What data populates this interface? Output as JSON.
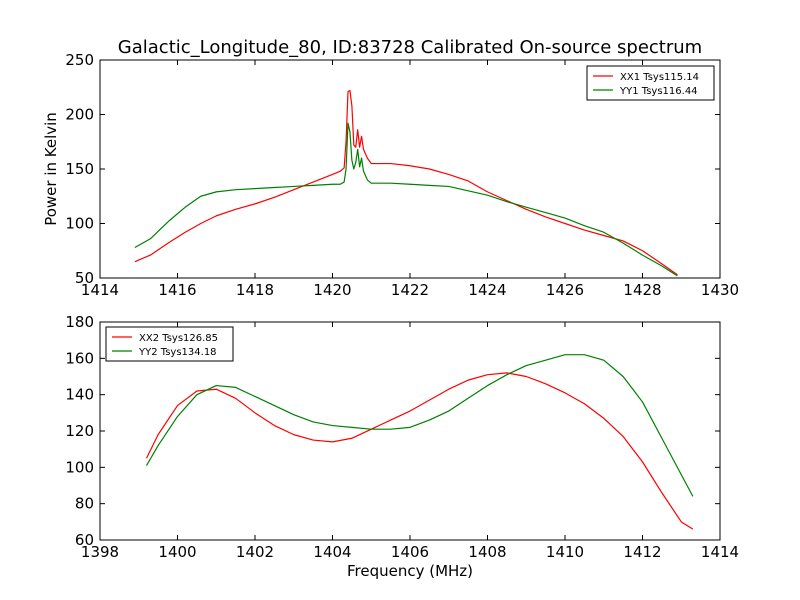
{
  "figure": {
    "title": "Galactic_Longitude_80, ID:83728 Calibrated On-source spectrum",
    "background": "#ffffff"
  },
  "chart_data": [
    {
      "type": "line",
      "title": "Galactic_Longitude_80, ID:83728 Calibrated On-source spectrum",
      "xlabel": "",
      "ylabel": "Power in Kelvin",
      "xlim": [
        1414,
        1430
      ],
      "ylim": [
        50,
        250
      ],
      "xticks": [
        1414,
        1416,
        1418,
        1420,
        1422,
        1424,
        1426,
        1428,
        1430
      ],
      "yticks": [
        50,
        100,
        150,
        200,
        250
      ],
      "grid": false,
      "legend_position": "top-right",
      "series": [
        {
          "name": "XX1 Tsys115.14",
          "color": "#ff0000",
          "points": [
            [
              1414.9,
              65
            ],
            [
              1415.3,
              71
            ],
            [
              1415.8,
              83
            ],
            [
              1416.2,
              92
            ],
            [
              1416.6,
              100
            ],
            [
              1417.0,
              107
            ],
            [
              1417.5,
              113
            ],
            [
              1418.0,
              118
            ],
            [
              1418.5,
              124
            ],
            [
              1419.0,
              131
            ],
            [
              1419.5,
              138
            ],
            [
              1420.0,
              145
            ],
            [
              1420.2,
              148
            ],
            [
              1420.3,
              151
            ],
            [
              1420.35,
              175
            ],
            [
              1420.4,
              221
            ],
            [
              1420.45,
              222
            ],
            [
              1420.5,
              208
            ],
            [
              1420.55,
              172
            ],
            [
              1420.6,
              170
            ],
            [
              1420.65,
              186
            ],
            [
              1420.7,
              170
            ],
            [
              1420.75,
              180
            ],
            [
              1420.8,
              168
            ],
            [
              1420.9,
              160
            ],
            [
              1421.0,
              155
            ],
            [
              1421.5,
              155
            ],
            [
              1422.0,
              153
            ],
            [
              1422.5,
              150
            ],
            [
              1423.0,
              145
            ],
            [
              1423.5,
              139
            ],
            [
              1424.0,
              129
            ],
            [
              1424.5,
              121
            ],
            [
              1425.0,
              113
            ],
            [
              1425.5,
              106
            ],
            [
              1426.0,
              100
            ],
            [
              1426.5,
              94
            ],
            [
              1427.0,
              89
            ],
            [
              1427.5,
              84
            ],
            [
              1428.0,
              75
            ],
            [
              1428.5,
              63
            ],
            [
              1428.9,
              53
            ]
          ]
        },
        {
          "name": "YY1 Tsys116.44",
          "color": "#008000",
          "points": [
            [
              1414.9,
              78
            ],
            [
              1415.3,
              86
            ],
            [
              1415.8,
              103
            ],
            [
              1416.2,
              115
            ],
            [
              1416.6,
              125
            ],
            [
              1417.0,
              129
            ],
            [
              1417.5,
              131
            ],
            [
              1418.0,
              132
            ],
            [
              1418.5,
              133
            ],
            [
              1419.0,
              134
            ],
            [
              1419.5,
              135
            ],
            [
              1420.0,
              136
            ],
            [
              1420.2,
              136
            ],
            [
              1420.3,
              138
            ],
            [
              1420.35,
              150
            ],
            [
              1420.4,
              192
            ],
            [
              1420.45,
              184
            ],
            [
              1420.5,
              158
            ],
            [
              1420.55,
              150
            ],
            [
              1420.6,
              156
            ],
            [
              1420.65,
              168
            ],
            [
              1420.7,
              152
            ],
            [
              1420.75,
              160
            ],
            [
              1420.8,
              148
            ],
            [
              1420.9,
              140
            ],
            [
              1421.0,
              137
            ],
            [
              1421.5,
              137
            ],
            [
              1422.0,
              136
            ],
            [
              1422.5,
              135
            ],
            [
              1423.0,
              134
            ],
            [
              1423.5,
              130
            ],
            [
              1424.0,
              126
            ],
            [
              1424.5,
              120
            ],
            [
              1425.0,
              115
            ],
            [
              1425.5,
              110
            ],
            [
              1426.0,
              105
            ],
            [
              1426.5,
              98
            ],
            [
              1427.0,
              92
            ],
            [
              1427.5,
              82
            ],
            [
              1428.0,
              71
            ],
            [
              1428.5,
              61
            ],
            [
              1428.9,
              52
            ]
          ]
        }
      ]
    },
    {
      "type": "line",
      "title": "",
      "xlabel": "Frequency (MHz)",
      "ylabel": "",
      "xlim": [
        1398,
        1414
      ],
      "ylim": [
        60,
        180
      ],
      "xticks": [
        1398,
        1400,
        1402,
        1404,
        1406,
        1408,
        1410,
        1412,
        1414
      ],
      "yticks": [
        60,
        80,
        100,
        120,
        140,
        160,
        180
      ],
      "grid": false,
      "legend_position": "top-left",
      "series": [
        {
          "name": "XX2 Tsys126.85",
          "color": "#ff0000",
          "points": [
            [
              1399.2,
              105
            ],
            [
              1399.5,
              118
            ],
            [
              1400.0,
              134
            ],
            [
              1400.5,
              142
            ],
            [
              1401.0,
              143
            ],
            [
              1401.5,
              138
            ],
            [
              1402.0,
              130
            ],
            [
              1402.5,
              123
            ],
            [
              1403.0,
              118
            ],
            [
              1403.5,
              115
            ],
            [
              1404.0,
              114
            ],
            [
              1404.5,
              116
            ],
            [
              1405.0,
              121
            ],
            [
              1405.5,
              126
            ],
            [
              1406.0,
              131
            ],
            [
              1406.5,
              137
            ],
            [
              1407.0,
              143
            ],
            [
              1407.5,
              148
            ],
            [
              1408.0,
              151
            ],
            [
              1408.5,
              152
            ],
            [
              1409.0,
              150
            ],
            [
              1409.5,
              146
            ],
            [
              1410.0,
              141
            ],
            [
              1410.5,
              135
            ],
            [
              1411.0,
              127
            ],
            [
              1411.5,
              117
            ],
            [
              1412.0,
              103
            ],
            [
              1412.5,
              86
            ],
            [
              1413.0,
              70
            ],
            [
              1413.3,
              66
            ]
          ]
        },
        {
          "name": "YY2 Tsys134.18",
          "color": "#008000",
          "points": [
            [
              1399.2,
              101
            ],
            [
              1399.5,
              112
            ],
            [
              1400.0,
              128
            ],
            [
              1400.5,
              140
            ],
            [
              1401.0,
              145
            ],
            [
              1401.5,
              144
            ],
            [
              1402.0,
              139
            ],
            [
              1402.5,
              134
            ],
            [
              1403.0,
              129
            ],
            [
              1403.5,
              125
            ],
            [
              1404.0,
              123
            ],
            [
              1404.5,
              122
            ],
            [
              1405.0,
              121
            ],
            [
              1405.5,
              121
            ],
            [
              1406.0,
              122
            ],
            [
              1406.5,
              126
            ],
            [
              1407.0,
              131
            ],
            [
              1407.5,
              138
            ],
            [
              1408.0,
              145
            ],
            [
              1408.5,
              151
            ],
            [
              1409.0,
              156
            ],
            [
              1409.5,
              159
            ],
            [
              1410.0,
              162
            ],
            [
              1410.5,
              162
            ],
            [
              1411.0,
              159
            ],
            [
              1411.5,
              150
            ],
            [
              1412.0,
              136
            ],
            [
              1412.5,
              116
            ],
            [
              1413.0,
              96
            ],
            [
              1413.3,
              84
            ]
          ]
        }
      ]
    }
  ]
}
